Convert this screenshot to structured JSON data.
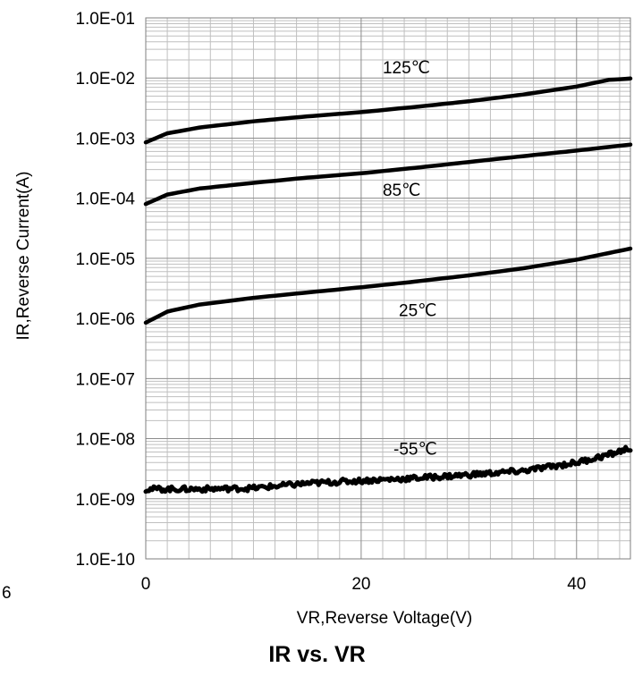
{
  "stray_text": "6",
  "chart_data": {
    "type": "line",
    "title": "IR vs. VR",
    "xlabel": "VR,Reverse Voltage(V)",
    "ylabel": "IR,Reverse Current(A)",
    "xlim": [
      0,
      45
    ],
    "ylim": [
      1e-10,
      0.1
    ],
    "yscale": "log",
    "x_ticks": [
      0,
      20,
      40
    ],
    "x_tick_labels": [
      "0",
      "20",
      "40"
    ],
    "y_ticks": [
      1e-10,
      1e-09,
      1e-08,
      1e-07,
      1e-06,
      1e-05,
      0.0001,
      0.001,
      0.01,
      0.1
    ],
    "y_tick_labels": [
      "1.0E-10",
      "1.0E-09",
      "1.0E-08",
      "1.0E-07",
      "1.0E-06",
      "1.0E-05",
      "1.0E-04",
      "1.0E-03",
      "1.0E-02",
      "1.0E-01"
    ],
    "grid": true,
    "legend": "none",
    "line_color": "#000000",
    "series": [
      {
        "name": "125℃",
        "label_at": [
          22,
          0.012
        ],
        "x": [
          0,
          2,
          5,
          10,
          15,
          20,
          25,
          30,
          35,
          40,
          43,
          45
        ],
        "y": [
          0.00085,
          0.0012,
          0.0015,
          0.0019,
          0.0023,
          0.0027,
          0.0033,
          0.0041,
          0.0053,
          0.0072,
          0.0093,
          0.0098
        ]
      },
      {
        "name": "85℃",
        "label_at": [
          22,
          0.00011
        ],
        "x": [
          0,
          2,
          5,
          10,
          15,
          20,
          25,
          30,
          35,
          40,
          45
        ],
        "y": [
          8e-05,
          0.000115,
          0.000145,
          0.00018,
          0.00022,
          0.00026,
          0.00032,
          0.0004,
          0.0005,
          0.00062,
          0.00078
        ]
      },
      {
        "name": "25℃",
        "label_at": [
          23.5,
          1.1e-06
        ],
        "x": [
          0,
          2,
          5,
          10,
          15,
          20,
          25,
          30,
          35,
          40,
          45
        ],
        "y": [
          8.5e-07,
          1.3e-06,
          1.7e-06,
          2.2e-06,
          2.7e-06,
          3.3e-06,
          4.1e-06,
          5.2e-06,
          6.8e-06,
          9.5e-06,
          1.45e-05
        ]
      },
      {
        "name": "-55℃",
        "label_at": [
          23,
          5.4e-09
        ],
        "noisy": true,
        "x": [
          0,
          2,
          5,
          10,
          15,
          20,
          25,
          30,
          35,
          40,
          43,
          45
        ],
        "y": [
          1.45e-09,
          1.45e-09,
          1.45e-09,
          1.5e-09,
          1.8e-09,
          2e-09,
          2.2e-09,
          2.5e-09,
          2.9e-09,
          4e-09,
          5.4e-09,
          7e-09
        ]
      }
    ]
  }
}
